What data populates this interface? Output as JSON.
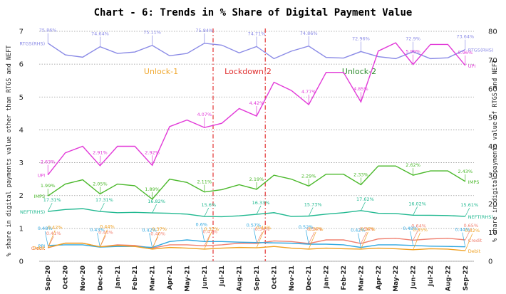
{
  "chart_data": {
    "type": "line",
    "title": "Chart - 6: Trends in % Share of Digital Payment Value",
    "ylabel_left": "% share in digital payments value other than RTGS and NEFT",
    "ylabel_right": "% share in digital payments value of RTGS and NEFT",
    "ylim_left": [
      0,
      7
    ],
    "ylim_right": [
      0,
      80
    ],
    "yticks_left": [
      "0",
      "1",
      "2",
      "3",
      "4",
      "5",
      "6",
      "7"
    ],
    "yticks_right": [
      "0",
      "10",
      "20",
      "30",
      "40",
      "50",
      "60",
      "70",
      "80"
    ],
    "categories": [
      "Sep-20",
      "Oct-20",
      "Nov-20",
      "Dec-20",
      "Jan-21",
      "Feb-21",
      "Mar-21",
      "Apr-21",
      "May-21",
      "Jun-21",
      "Jul-21",
      "Aug-21",
      "Sep-21",
      "Oct-21",
      "Nov-21",
      "Dec-21",
      "Jan-22",
      "Feb-22",
      "Mar-22",
      "Apr-22",
      "May-22",
      "Jun-22",
      "Jul-22",
      "Aug-22",
      "Sep-22"
    ],
    "periods": [
      {
        "label": "Unlock-1",
        "color": "#f0a830"
      },
      {
        "label": "Lockdown-2",
        "color": "#e03030"
      },
      {
        "label": "Unlock-2",
        "color": "#2e8b2e"
      }
    ],
    "lockdown_lines": [
      {
        "between": [
          "Jun-21",
          "Jul-21"
        ]
      },
      {
        "between": [
          "Sep-21",
          "Oct-21"
        ]
      }
    ],
    "series": [
      {
        "name": "RTGS(RHS)",
        "axis": "right",
        "color": "#8a8ae6",
        "start_label": "RTGS(RHS)",
        "end_label": "RTGS(RHS)",
        "values": [
          75.86,
          71.8,
          71.0,
          74.64,
          72.3,
          72.8,
          75.11,
          71.5,
          72.3,
          75.84,
          75.2,
          72.5,
          74.71,
          70.5,
          73.1,
          74.86,
          70.9,
          70.7,
          72.96,
          71.2,
          70.5,
          72.9,
          70.5,
          70.8,
          73.64
        ],
        "labels": {
          "Sep-20": "75.86%",
          "Dec-20": "74.64%",
          "Mar-21": "75.11%",
          "Jun-21": "75.84%",
          "Sep-21": "74.71%",
          "Dec-21": "74.86%",
          "Mar-22": "72.96%",
          "Jun-22": "72.9%",
          "Sep-22": "73.64%"
        }
      },
      {
        "name": "UPI",
        "axis": "left",
        "color": "#e23ad8",
        "start_label": "UPI",
        "end_label": "UPI",
        "values": [
          2.63,
          3.3,
          3.5,
          2.91,
          3.5,
          3.5,
          2.92,
          4.1,
          4.3,
          4.07,
          4.2,
          4.65,
          4.42,
          5.45,
          5.2,
          4.77,
          5.75,
          5.75,
          4.85,
          6.4,
          6.65,
          5.99,
          6.6,
          6.6,
          5.96
        ],
        "labels": {
          "Sep-20": "2.63%",
          "Dec-20": "2.91%",
          "Mar-21": "2.92%",
          "Jun-21": "4.07%",
          "Sep-21": "4.42%",
          "Dec-21": "4.77%",
          "Mar-22": "4.85%",
          "Jun-22": "5.99%",
          "Sep-22": "5.96%"
        }
      },
      {
        "name": "IMPS",
        "axis": "left",
        "color": "#4ab82a",
        "start_label": "IMPS",
        "end_label": "IMPS",
        "values": [
          1.99,
          2.35,
          2.48,
          2.05,
          2.35,
          2.3,
          1.89,
          2.5,
          2.4,
          2.11,
          2.18,
          2.33,
          2.19,
          2.62,
          2.5,
          2.29,
          2.65,
          2.65,
          2.33,
          2.9,
          2.9,
          2.62,
          2.75,
          2.75,
          2.43
        ],
        "labels": {
          "Sep-20": "1.99%",
          "Dec-20": "2.05%",
          "Mar-21": "1.89%",
          "Jun-21": "2.11%",
          "Sep-21": "2.19%",
          "Dec-21": "2.29%",
          "Mar-22": "2.33%",
          "Jun-22": "2.62%",
          "Sep-22": "2.43%"
        }
      },
      {
        "name": "NEFT(RHS)",
        "axis": "right",
        "color": "#20b890",
        "start_label": "NEFT(RHS)",
        "end_label": "NEFT(RHS)",
        "values": [
          17.31,
          18.0,
          18.3,
          17.31,
          16.9,
          17.0,
          16.82,
          16.7,
          16.4,
          15.6,
          15.5,
          15.8,
          16.33,
          16.9,
          15.6,
          15.73,
          16.4,
          16.9,
          17.62,
          16.7,
          16.6,
          16.02,
          16.0,
          15.9,
          15.61
        ],
        "labels": {
          "Sep-20": "17.31%",
          "Dec-20": "17.31%",
          "Mar-21": "16.82%",
          "Jun-21": "15.6%",
          "Sep-21": "16.33%",
          "Dec-21": "15.73%",
          "Mar-22": "17.62%",
          "Jun-22": "16.02%",
          "Sep-22": "15.61%"
        }
      },
      {
        "name": "Credit",
        "axis": "left",
        "color": "#f08070",
        "start_label": "Credit",
        "end_label": "Credit",
        "values": [
          0.41,
          0.55,
          0.55,
          0.44,
          0.5,
          0.48,
          0.4,
          0.5,
          0.5,
          0.47,
          0.5,
          0.55,
          0.54,
          0.62,
          0.6,
          0.54,
          0.65,
          0.65,
          0.54,
          0.68,
          0.7,
          0.64,
          0.68,
          0.7,
          0.65
        ],
        "labels": {
          "Sep-20": "0.41%",
          "Dec-20": "0.44%",
          "Mar-21": "0.40%",
          "Jun-21": "0.47%",
          "Sep-21": "0.54%",
          "Dec-21": "0.54%",
          "Mar-22": "0.54%",
          "Jun-22": "0.64%",
          "Sep-22": "0.65%"
        }
      },
      {
        "name": "PPI",
        "axis": "left",
        "color": "#30a8e0",
        "start_label": "PPI",
        "end_label": "",
        "values": [
          0.48,
          0.5,
          0.5,
          0.43,
          0.45,
          0.45,
          0.42,
          0.6,
          0.65,
          0.6,
          0.6,
          0.58,
          0.57,
          0.56,
          0.55,
          0.52,
          0.52,
          0.5,
          0.42,
          0.5,
          0.5,
          0.48,
          0.46,
          0.45,
          0.44
        ],
        "labels": {
          "Sep-20": "0.48%",
          "Dec-20": "0.43%",
          "Mar-21": "0.42%",
          "Jun-21": "0.6%",
          "Sep-21": "0.57%",
          "Dec-21": "0.52%",
          "Mar-22": "0.42%",
          "Jun-22": "0.48%",
          "Sep-22": "0.44%"
        }
      },
      {
        "name": "Debit",
        "axis": "left",
        "color": "#f0a020",
        "start_label": "Debit",
        "end_label": "Debit",
        "values": [
          0.42,
          0.55,
          0.55,
          0.44,
          0.48,
          0.45,
          0.37,
          0.42,
          0.4,
          0.37,
          0.4,
          0.42,
          0.41,
          0.45,
          0.4,
          0.37,
          0.4,
          0.38,
          0.37,
          0.4,
          0.38,
          0.35,
          0.38,
          0.37,
          0.32
        ],
        "labels": {
          "Sep-20": "0.42%",
          "Dec-20": "0.44%",
          "Mar-21": "0.37%",
          "Jun-21": "0.37%",
          "Sep-21": "0.41%",
          "Dec-21": "0.37%",
          "Mar-22": "0.37%",
          "Jun-22": "0.35%",
          "Sep-22": "0.32%"
        }
      }
    ]
  }
}
